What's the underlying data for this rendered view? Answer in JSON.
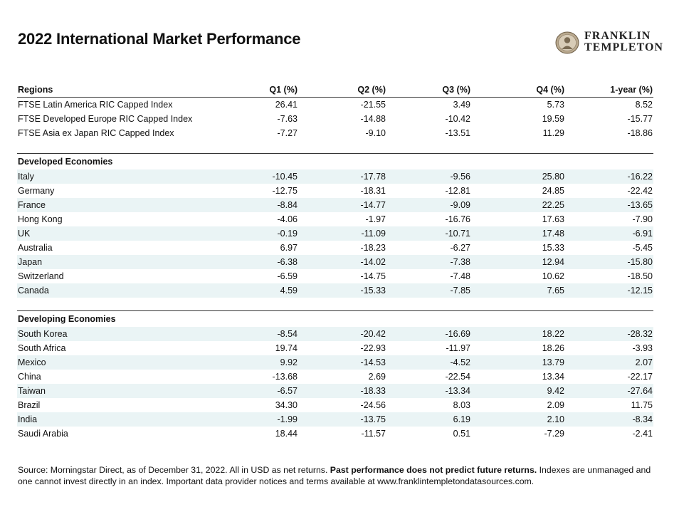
{
  "title": "2022 International Market Performance",
  "logo": {
    "line1": "FRANKLIN",
    "line2": "TEMPLETON"
  },
  "chart_data": {
    "type": "table",
    "title": "2022 International Market Performance",
    "columns": [
      "Regions",
      "Q1 (%)",
      "Q2 (%)",
      "Q3 (%)",
      "Q4 (%)",
      "1-year (%)"
    ],
    "sections": [
      {
        "heading": "",
        "rows": [
          {
            "name": "FTSE Latin America RIC Capped Index",
            "values": [
              "26.41",
              "-21.55",
              "3.49",
              "5.73",
              "8.52"
            ]
          },
          {
            "name": "FTSE Developed Europe RIC Capped Index",
            "values": [
              "-7.63",
              "-14.88",
              "-10.42",
              "19.59",
              "-15.77"
            ]
          },
          {
            "name": "FTSE Asia ex Japan RIC Capped Index",
            "values": [
              "-7.27",
              "-9.10",
              "-13.51",
              "11.29",
              "-18.86"
            ]
          }
        ]
      },
      {
        "heading": "Developed Economies",
        "rows": [
          {
            "name": "Italy",
            "values": [
              "-10.45",
              "-17.78",
              "-9.56",
              "25.80",
              "-16.22"
            ]
          },
          {
            "name": "Germany",
            "values": [
              "-12.75",
              "-18.31",
              "-12.81",
              "24.85",
              "-22.42"
            ]
          },
          {
            "name": "France",
            "values": [
              "-8.84",
              "-14.77",
              "-9.09",
              "22.25",
              "-13.65"
            ]
          },
          {
            "name": "Hong Kong",
            "values": [
              "-4.06",
              "-1.97",
              "-16.76",
              "17.63",
              "-7.90"
            ]
          },
          {
            "name": "UK",
            "values": [
              "-0.19",
              "-11.09",
              "-10.71",
              "17.48",
              "-6.91"
            ]
          },
          {
            "name": "Australia",
            "values": [
              "6.97",
              "-18.23",
              "-6.27",
              "15.33",
              "-5.45"
            ]
          },
          {
            "name": "Japan",
            "values": [
              "-6.38",
              "-14.02",
              "-7.38",
              "12.94",
              "-15.80"
            ]
          },
          {
            "name": "Switzerland",
            "values": [
              "-6.59",
              "-14.75",
              "-7.48",
              "10.62",
              "-18.50"
            ]
          },
          {
            "name": "Canada",
            "values": [
              "4.59",
              "-15.33",
              "-7.85",
              "7.65",
              "-12.15"
            ]
          }
        ]
      },
      {
        "heading": "Developing Economies",
        "rows": [
          {
            "name": "South Korea",
            "values": [
              "-8.54",
              "-20.42",
              "-16.69",
              "18.22",
              "-28.32"
            ]
          },
          {
            "name": "South Africa",
            "values": [
              "19.74",
              "-22.93",
              "-11.97",
              "18.26",
              "-3.93"
            ]
          },
          {
            "name": "Mexico",
            "values": [
              "9.92",
              "-14.53",
              "-4.52",
              "13.79",
              "2.07"
            ]
          },
          {
            "name": "China",
            "values": [
              "-13.68",
              "2.69",
              "-22.54",
              "13.34",
              "-22.17"
            ]
          },
          {
            "name": "Taiwan",
            "values": [
              "-6.57",
              "-18.33",
              "-13.34",
              "9.42",
              "-27.64"
            ]
          },
          {
            "name": "Brazil",
            "values": [
              "34.30",
              "-24.56",
              "8.03",
              "2.09",
              "11.75"
            ]
          },
          {
            "name": "India",
            "values": [
              "-1.99",
              "-13.75",
              "6.19",
              "2.10",
              "-8.34"
            ]
          },
          {
            "name": "Saudi Arabia",
            "values": [
              "18.44",
              "-11.57",
              "0.51",
              "-7.29",
              "-2.41"
            ]
          }
        ]
      }
    ]
  },
  "footnote": {
    "part1": "Source: Morningstar Direct, as of December 31, 2022. All in USD as net returns. ",
    "bold": "Past performance does not predict future returns.",
    "part2": " Indexes are unmanaged and one cannot invest directly in an index. Important data provider notices and terms available at www.franklintempletondatasources.com."
  },
  "colors": {
    "row_shade": "#eaf4f5",
    "rule": "#333333",
    "text": "#111111"
  }
}
